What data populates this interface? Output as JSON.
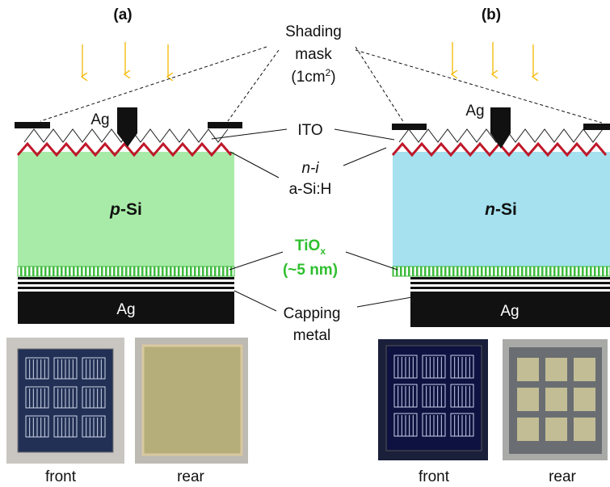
{
  "panels": [
    {
      "label": "(a)",
      "substrate": {
        "italic": "p",
        "rest": "-Si"
      },
      "electrode": "Ag",
      "rear_metal": "Ag",
      "photos": [
        "front",
        "rear"
      ]
    },
    {
      "label": "(b)",
      "substrate": {
        "italic": "n",
        "rest": "-Si"
      },
      "electrode": "Ag",
      "rear_metal": "Ag",
      "photos": [
        "front",
        "rear"
      ]
    }
  ],
  "center_labels": {
    "shading": "Shading",
    "mask": "mask",
    "area": {
      "open": "(1cm",
      "sup": "2",
      "close": ")"
    },
    "ito": "ITO",
    "ni": "n-i",
    "asih": "a-Si:H",
    "tiox": {
      "base": "TiO",
      "sub": "x"
    },
    "thickness": "(~5 nm)",
    "capping": "Capping",
    "metal": "metal"
  }
}
